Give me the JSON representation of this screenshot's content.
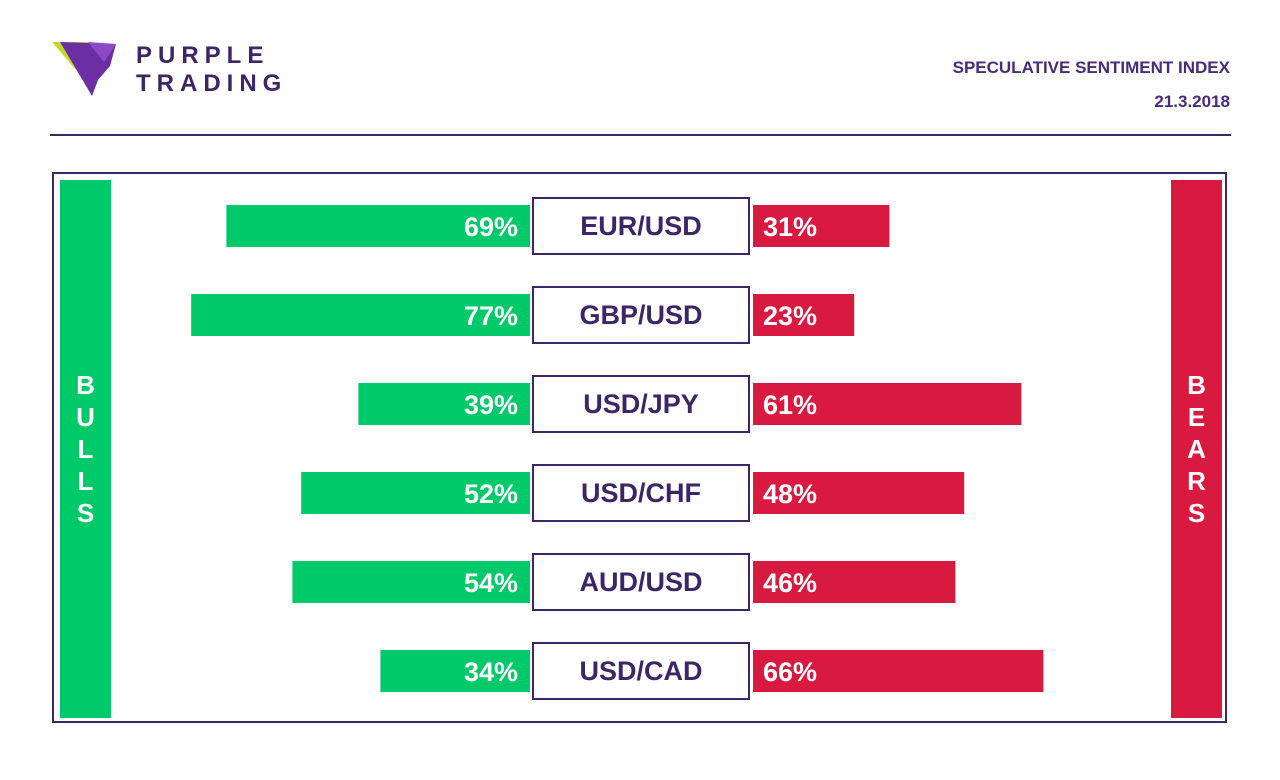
{
  "brand": {
    "line1": "PURPLE",
    "line2": "TRADING"
  },
  "report": {
    "title": "SPECULATIVE SENTIMENT INDEX",
    "date": "21.3.2018"
  },
  "sides": {
    "bulls": [
      "B",
      "U",
      "L",
      "L",
      "S"
    ],
    "bears": [
      "B",
      "E",
      "A",
      "R",
      "S"
    ]
  },
  "colors": {
    "bulls": "#00c96a",
    "bears": "#d91a40",
    "accent": "#3d2667"
  },
  "chart_data": {
    "type": "bar",
    "categories": [
      "EUR/USD",
      "GBP/USD",
      "USD/JPY",
      "USD/CHF",
      "AUD/USD",
      "USD/CAD"
    ],
    "series": [
      {
        "name": "BULLS",
        "values": [
          69,
          77,
          39,
          52,
          54,
          34
        ],
        "labels": [
          "69%",
          "77%",
          "39%",
          "52%",
          "54%",
          "34%"
        ]
      },
      {
        "name": "BEARS",
        "values": [
          31,
          23,
          61,
          48,
          46,
          66
        ],
        "labels": [
          "31%",
          "23%",
          "61%",
          "48%",
          "46%",
          "66%"
        ]
      }
    ]
  }
}
